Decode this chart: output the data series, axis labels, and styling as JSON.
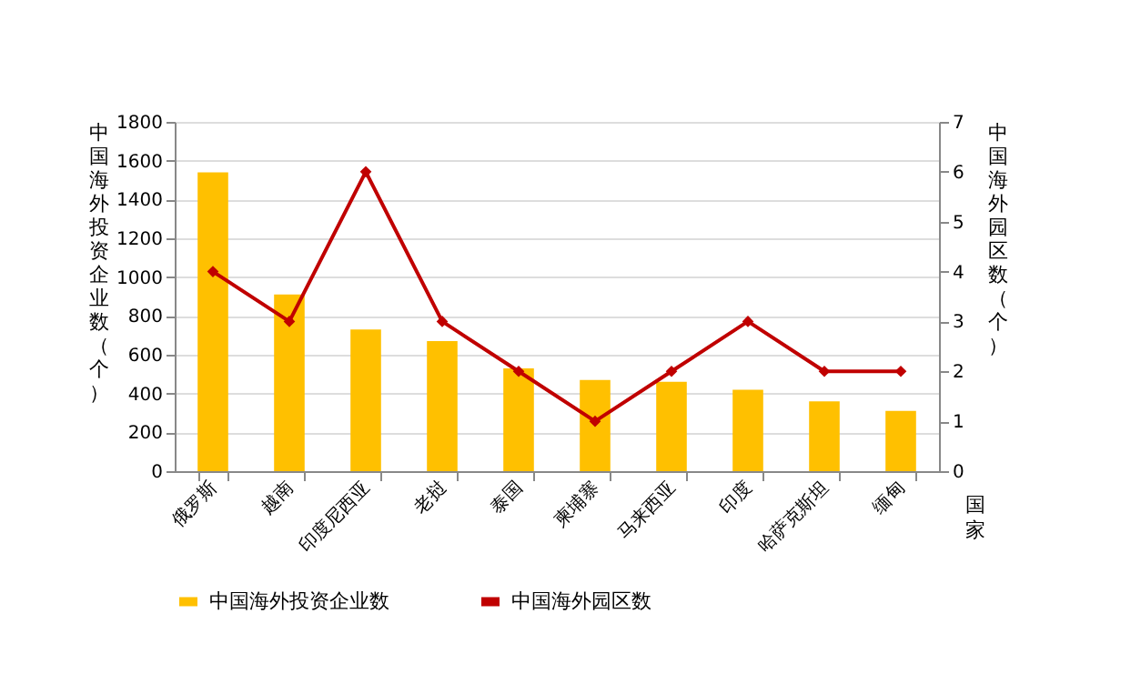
{
  "chart_data": {
    "type": "bar",
    "categories": [
      "俄罗斯",
      "越南",
      "印度尼西亚",
      "老挝",
      "泰国",
      "柬埔寨",
      "马来西亚",
      "印度",
      "哈萨克斯坦",
      "缅甸"
    ],
    "xlabel": "国家",
    "ylabel": "中国海外投资企业数（个）",
    "y2label": "中国海外园区数（个）",
    "series": [
      {
        "name": "中国海外投资企业数",
        "color": "#ffc000",
        "values": [
          1540,
          910,
          730,
          670,
          530,
          470,
          460,
          420,
          360,
          310
        ]
      },
      {
        "name": "中国海外园区数",
        "type": "line",
        "axis": "y2",
        "color": "#c00000",
        "values": [
          4,
          3,
          6,
          3,
          2,
          1,
          2,
          3,
          2,
          2
        ]
      }
    ],
    "ylim": [
      0,
      1800
    ],
    "yticks": [
      0,
      200,
      400,
      600,
      800,
      1000,
      1200,
      1400,
      1600,
      1800
    ],
    "y2lim": [
      0,
      7
    ],
    "y2ticks": [
      0,
      1,
      2,
      3,
      4,
      5,
      6,
      7
    ],
    "grid": "y",
    "legend": "bottom",
    "marker": "diamond",
    "line_style": "solid"
  }
}
